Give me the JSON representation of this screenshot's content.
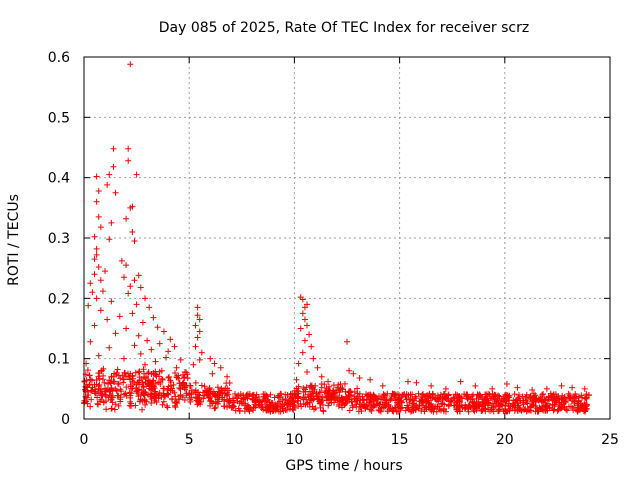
{
  "chart_data": {
    "type": "scatter",
    "title": "Day 085 of 2025, Rate Of TEC Index for receiver scrz",
    "xlabel": "GPS time / hours",
    "ylabel": "ROTI / TECUs",
    "xlim": [
      0,
      25
    ],
    "ylim": [
      0,
      0.6
    ],
    "xticks": [
      0,
      5,
      10,
      15,
      20,
      25
    ],
    "xtick_labels": [
      "0",
      "5",
      "10",
      "15",
      "20",
      "25"
    ],
    "yticks": [
      0,
      0.1,
      0.2,
      0.3,
      0.4,
      0.5,
      0.6
    ],
    "ytick_labels": [
      "0",
      "0.1",
      "0.2",
      "0.3",
      "0.4",
      "0.5",
      "0.6"
    ],
    "grid": true,
    "marker": "plus",
    "color": "#ff0000",
    "series": [
      {
        "name": "ROTI",
        "points": [
          [
            2.2,
            0.588
          ],
          [
            1.4,
            0.448
          ],
          [
            2.1,
            0.448
          ],
          [
            2.1,
            0.428
          ],
          [
            1.4,
            0.418
          ],
          [
            1.2,
            0.405
          ],
          [
            0.6,
            0.402
          ],
          [
            2.5,
            0.405
          ],
          [
            1.1,
            0.388
          ],
          [
            0.7,
            0.378
          ],
          [
            1.5,
            0.375
          ],
          [
            0.6,
            0.36
          ],
          [
            2.3,
            0.352
          ],
          [
            2.2,
            0.35
          ],
          [
            0.7,
            0.335
          ],
          [
            2.0,
            0.332
          ],
          [
            1.3,
            0.325
          ],
          [
            0.8,
            0.318
          ],
          [
            2.3,
            0.31
          ],
          [
            0.5,
            0.302
          ],
          [
            1.2,
            0.298
          ],
          [
            2.4,
            0.295
          ],
          [
            0.6,
            0.282
          ],
          [
            0.6,
            0.272
          ],
          [
            0.5,
            0.265
          ],
          [
            1.8,
            0.262
          ],
          [
            2.0,
            0.255
          ],
          [
            0.7,
            0.252
          ],
          [
            1.0,
            0.245
          ],
          [
            0.5,
            0.24
          ],
          [
            2.6,
            0.238
          ],
          [
            0.8,
            0.23
          ],
          [
            1.9,
            0.235
          ],
          [
            2.4,
            0.23
          ],
          [
            0.3,
            0.225
          ],
          [
            2.2,
            0.22
          ],
          [
            2.7,
            0.218
          ],
          [
            0.9,
            0.212
          ],
          [
            0.4,
            0.21
          ],
          [
            2.1,
            0.208
          ],
          [
            0.6,
            0.2
          ],
          [
            2.9,
            0.2
          ],
          [
            1.3,
            0.195
          ],
          [
            2.5,
            0.19
          ],
          [
            0.2,
            0.188
          ],
          [
            3.1,
            0.185
          ],
          [
            0.8,
            0.18
          ],
          [
            2.3,
            0.175
          ],
          [
            1.7,
            0.17
          ],
          [
            3.3,
            0.168
          ],
          [
            1.1,
            0.165
          ],
          [
            2.8,
            0.16
          ],
          [
            0.5,
            0.155
          ],
          [
            3.5,
            0.152
          ],
          [
            2.0,
            0.15
          ],
          [
            3.8,
            0.145
          ],
          [
            1.5,
            0.142
          ],
          [
            2.6,
            0.138
          ],
          [
            4.1,
            0.132
          ],
          [
            3.0,
            0.13
          ],
          [
            0.3,
            0.128
          ],
          [
            3.6,
            0.125
          ],
          [
            2.4,
            0.122
          ],
          [
            4.3,
            0.12
          ],
          [
            1.2,
            0.118
          ],
          [
            3.2,
            0.115
          ],
          [
            4.0,
            0.112
          ],
          [
            2.7,
            0.108
          ],
          [
            0.7,
            0.105
          ],
          [
            3.9,
            0.102
          ],
          [
            1.9,
            0.1
          ],
          [
            4.6,
            0.098
          ],
          [
            3.4,
            0.095
          ],
          [
            0.1,
            0.092
          ],
          [
            2.9,
            0.09
          ],
          [
            4.4,
            0.085
          ],
          [
            1.6,
            0.082
          ],
          [
            3.7,
            0.08
          ],
          [
            4.8,
            0.078
          ],
          [
            2.2,
            0.075
          ],
          [
            5.4,
            0.185
          ],
          [
            5.4,
            0.172
          ],
          [
            5.5,
            0.165
          ],
          [
            5.3,
            0.155
          ],
          [
            5.5,
            0.145
          ],
          [
            5.4,
            0.135
          ],
          [
            5.3,
            0.12
          ],
          [
            5.6,
            0.11
          ],
          [
            5.5,
            0.098
          ],
          [
            5.2,
            0.09
          ],
          [
            6.0,
            0.1
          ],
          [
            6.2,
            0.092
          ],
          [
            6.5,
            0.085
          ],
          [
            6.1,
            0.075
          ],
          [
            6.8,
            0.07
          ],
          [
            10.3,
            0.202
          ],
          [
            10.4,
            0.198
          ],
          [
            10.5,
            0.185
          ],
          [
            10.6,
            0.19
          ],
          [
            10.4,
            0.175
          ],
          [
            10.5,
            0.165
          ],
          [
            10.6,
            0.155
          ],
          [
            10.3,
            0.15
          ],
          [
            10.7,
            0.14
          ],
          [
            10.5,
            0.13
          ],
          [
            10.8,
            0.12
          ],
          [
            10.4,
            0.11
          ],
          [
            10.9,
            0.1
          ],
          [
            10.2,
            0.092
          ],
          [
            11.1,
            0.085
          ],
          [
            10.6,
            0.078
          ],
          [
            11.3,
            0.07
          ],
          [
            10.1,
            0.065
          ],
          [
            11.6,
            0.062
          ],
          [
            12.5,
            0.128
          ],
          [
            12.6,
            0.08
          ],
          [
            12.8,
            0.075
          ],
          [
            13.1,
            0.068
          ],
          [
            13.6,
            0.065
          ],
          [
            14.2,
            0.055
          ],
          [
            15.4,
            0.062
          ],
          [
            15.8,
            0.06
          ],
          [
            16.5,
            0.055
          ],
          [
            17.2,
            0.05
          ],
          [
            17.9,
            0.062
          ],
          [
            18.6,
            0.055
          ],
          [
            19.4,
            0.05
          ],
          [
            20.1,
            0.058
          ],
          [
            20.6,
            0.052
          ],
          [
            21.3,
            0.048
          ],
          [
            22.0,
            0.05
          ],
          [
            22.7,
            0.055
          ],
          [
            23.2,
            0.052
          ],
          [
            23.8,
            0.05
          ]
        ]
      }
    ]
  }
}
